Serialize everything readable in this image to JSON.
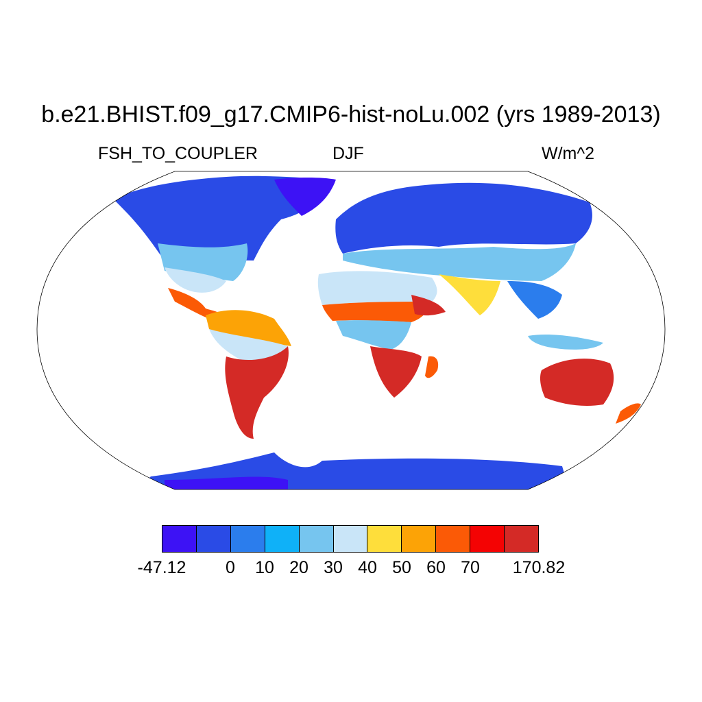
{
  "title": "b.e21.BHIST.f09_g17.CMIP6-hist-noLu.002 (yrs 1989-2013)",
  "variable": "FSH_TO_COUPLER",
  "season": "DJF",
  "units": "W/m^2",
  "colorbar": {
    "colors": [
      "#3d12f5",
      "#2a4be6",
      "#2b7ded",
      "#0fb1f8",
      "#76c5ef",
      "#c9e5f8",
      "#fede3b",
      "#fca306",
      "#fb5a06",
      "#f40303",
      "#d42a26"
    ],
    "labels": [
      "-47.12",
      "0",
      "10",
      "20",
      "30",
      "40",
      "50",
      "60",
      "70",
      "170.82"
    ]
  }
}
